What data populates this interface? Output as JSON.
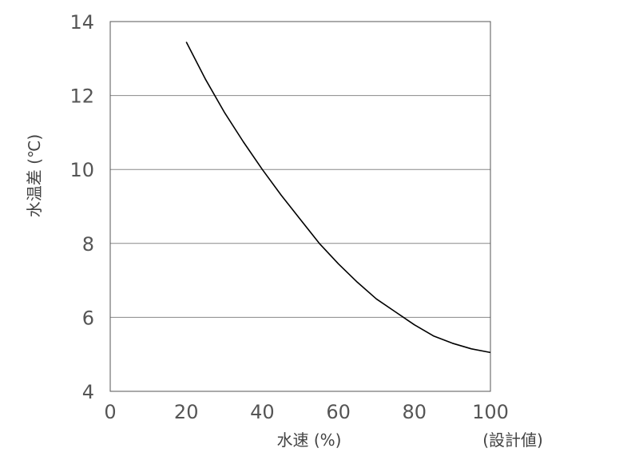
{
  "chart_data": {
    "type": "line",
    "xlabel": "水速 (%)",
    "ylabel": "水温差 (℃)",
    "x_annotation": "(設計値)",
    "xlim": [
      0,
      100
    ],
    "ylim": [
      4,
      14
    ],
    "xticks": [
      "0",
      "20",
      "40",
      "60",
      "80",
      "100"
    ],
    "yticks": [
      "4",
      "6",
      "8",
      "10",
      "12",
      "14"
    ],
    "grid": "horizontal",
    "series": [
      {
        "color": "#000000",
        "x": [
          20,
          25,
          30,
          35,
          40,
          45,
          50,
          55,
          60,
          65,
          70,
          75,
          80,
          85,
          90,
          95,
          100
        ],
        "y": [
          13.45,
          12.45,
          11.55,
          10.75,
          10.0,
          9.3,
          8.65,
          8.0,
          7.45,
          6.95,
          6.5,
          6.15,
          5.8,
          5.5,
          5.3,
          5.15,
          5.05
        ]
      }
    ]
  }
}
